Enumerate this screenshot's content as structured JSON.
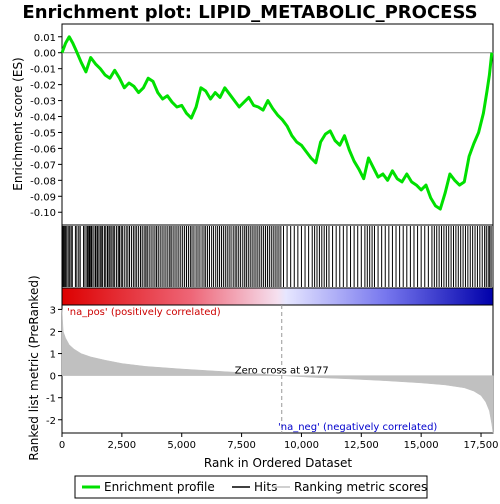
{
  "chart_data": {
    "type": "line",
    "title": "Enrichment plot: LIPID_METABOLIC_PROCESS",
    "top_panel": {
      "ylabel": "Enrichment score (ES)",
      "ylim": [
        -0.108,
        0.018
      ],
      "yticks": [
        0.01,
        0.0,
        -0.01,
        -0.02,
        -0.03,
        -0.04,
        -0.05,
        -0.06,
        -0.07,
        -0.08,
        -0.09,
        -0.1
      ],
      "ytick_labels": [
        "0.01",
        "0.00",
        "-0.01",
        "-0.02",
        "-0.03",
        "-0.04",
        "-0.05",
        "-0.06",
        "-0.07",
        "-0.08",
        "-0.09",
        "-0.10"
      ],
      "series": [
        {
          "name": "Enrichment profile",
          "color": "#00e000",
          "x": [
            0,
            150,
            300,
            450,
            600,
            800,
            1000,
            1200,
            1400,
            1600,
            1800,
            2000,
            2200,
            2400,
            2600,
            2800,
            3000,
            3200,
            3400,
            3600,
            3800,
            4000,
            4200,
            4400,
            4600,
            4800,
            5000,
            5200,
            5400,
            5600,
            5800,
            6000,
            6200,
            6400,
            6600,
            6800,
            7000,
            7200,
            7400,
            7600,
            7800,
            8000,
            8200,
            8400,
            8600,
            8800,
            9000,
            9200,
            9400,
            9600,
            9800,
            10000,
            10200,
            10400,
            10600,
            10800,
            11000,
            11200,
            11400,
            11600,
            11800,
            12000,
            12200,
            12400,
            12600,
            12800,
            13000,
            13200,
            13400,
            13600,
            13800,
            14000,
            14200,
            14400,
            14600,
            14800,
            15000,
            15200,
            15400,
            15600,
            15800,
            16000,
            16200,
            16400,
            16600,
            16800,
            17000,
            17200,
            17400,
            17600,
            17750,
            17850,
            17950
          ],
          "y": [
            0.0,
            0.006,
            0.01,
            0.006,
            0.001,
            -0.006,
            -0.012,
            -0.003,
            -0.007,
            -0.01,
            -0.014,
            -0.016,
            -0.011,
            -0.016,
            -0.022,
            -0.019,
            -0.021,
            -0.025,
            -0.022,
            -0.016,
            -0.018,
            -0.025,
            -0.029,
            -0.027,
            -0.031,
            -0.034,
            -0.033,
            -0.038,
            -0.041,
            -0.034,
            -0.022,
            -0.024,
            -0.029,
            -0.025,
            -0.028,
            -0.022,
            -0.026,
            -0.03,
            -0.034,
            -0.031,
            -0.028,
            -0.033,
            -0.034,
            -0.036,
            -0.03,
            -0.035,
            -0.039,
            -0.042,
            -0.046,
            -0.052,
            -0.056,
            -0.058,
            -0.062,
            -0.066,
            -0.069,
            -0.056,
            -0.051,
            -0.049,
            -0.055,
            -0.058,
            -0.052,
            -0.061,
            -0.068,
            -0.073,
            -0.079,
            -0.066,
            -0.072,
            -0.078,
            -0.076,
            -0.08,
            -0.074,
            -0.079,
            -0.081,
            -0.076,
            -0.081,
            -0.083,
            -0.086,
            -0.083,
            -0.091,
            -0.096,
            -0.098,
            -0.088,
            -0.076,
            -0.08,
            -0.083,
            -0.081,
            -0.065,
            -0.057,
            -0.05,
            -0.038,
            -0.024,
            -0.014,
            0.0
          ]
        }
      ]
    },
    "hits_panel": {
      "hit_ranks": [
        20,
        60,
        100,
        150,
        200,
        260,
        320,
        380,
        430,
        560,
        620,
        700,
        760,
        900,
        960,
        1040,
        1080,
        1130,
        1160,
        1210,
        1240,
        1300,
        1380,
        1420,
        1480,
        1540,
        1600,
        1660,
        1700,
        1780,
        1830,
        1900,
        1960,
        2010,
        2080,
        2140,
        2200,
        2280,
        2350,
        2400,
        2470,
        2520,
        2600,
        2680,
        2750,
        2820,
        2900,
        2980,
        3050,
        3120,
        3200,
        3280,
        3350,
        3430,
        3500,
        3560,
        3640,
        3720,
        3800,
        3880,
        3950,
        4020,
        4100,
        4180,
        4260,
        4340,
        4420,
        4500,
        4560,
        4640,
        4720,
        4800,
        4880,
        4960,
        5040,
        5120,
        5200,
        5280,
        5360,
        5430,
        5510,
        5600,
        5680,
        5760,
        5850,
        5930,
        6000,
        6080,
        6160,
        6250,
        6330,
        6420,
        6500,
        6580,
        6660,
        6740,
        6820,
        6900,
        6980,
        7060,
        7150,
        7230,
        7300,
        7380,
        7460,
        7550,
        7630,
        7700,
        7780,
        7860,
        7940,
        8020,
        8100,
        8180,
        8260,
        8340,
        8420,
        8500,
        8580,
        8660,
        8740,
        8820,
        8900,
        8980,
        9060,
        9140,
        9250,
        9400,
        9550,
        9700,
        9850,
        10000,
        10150,
        10300,
        10450,
        10550,
        10650,
        10750,
        10850,
        10950,
        11050,
        11150,
        11300,
        11450,
        11600,
        11750,
        11900,
        12050,
        12200,
        12350,
        12500,
        12650,
        12750,
        12850,
        12950,
        13050,
        13200,
        13350,
        13500,
        13650,
        13800,
        13950,
        14100,
        14250,
        14400,
        14550,
        14700,
        14850,
        15000,
        15150,
        15300,
        15450,
        15550,
        15650,
        15750,
        15850,
        15950,
        16050,
        16150,
        16250,
        16350,
        16450,
        16550,
        16650,
        16750,
        16850,
        16950,
        17050,
        17150,
        17250,
        17350,
        17450,
        17550,
        17650,
        17720,
        17800,
        17860,
        17920
      ]
    },
    "bottom_panel": {
      "ylabel": "Ranked list metric (PreRanked)",
      "xlabel": "Rank in Ordered Dataset",
      "ylim": [
        -2.6,
        3.2
      ],
      "yticks": [
        3,
        2,
        1,
        0,
        -1,
        -2
      ],
      "ytick_labels": [
        "3",
        "2",
        "1",
        "0",
        "-1",
        "-2"
      ],
      "xlim": [
        0,
        18000
      ],
      "xticks": [
        0,
        2500,
        5000,
        7500,
        10000,
        12500,
        15000,
        17500
      ],
      "xtick_labels": [
        "0",
        "2,500",
        "5,000",
        "7,500",
        "10,000",
        "12,500",
        "15,000",
        "17,500"
      ],
      "metric_x": [
        0,
        50,
        150,
        300,
        500,
        800,
        1200,
        1800,
        2500,
        3500,
        5000,
        6500,
        8000,
        9177,
        10500,
        12000,
        13500,
        15000,
        16000,
        16800,
        17200,
        17500,
        17700,
        17850,
        17950,
        18000
      ],
      "metric_y": [
        3.0,
        2.0,
        1.7,
        1.4,
        1.2,
        1.0,
        0.85,
        0.7,
        0.55,
        0.42,
        0.3,
        0.2,
        0.1,
        0.0,
        -0.08,
        -0.15,
        -0.23,
        -0.33,
        -0.42,
        -0.55,
        -0.7,
        -0.9,
        -1.2,
        -1.6,
        -2.2,
        -2.6
      ],
      "zero_cross_rank": 9177,
      "zero_cross_label": "Zero cross at 9177",
      "pos_label": "'na_pos' (positively correlated)",
      "neg_label": "'na_neg' (negatively correlated)",
      "pos_color": "#cc0000",
      "neg_color": "#0000cc"
    },
    "legend": {
      "placement": "bottom",
      "items": [
        {
          "label": "Enrichment profile",
          "color": "#00e000",
          "kind": "line"
        },
        {
          "label": "Hits",
          "color": "#000000",
          "kind": "line"
        },
        {
          "label": "Ranking metric scores",
          "color": "#c0c0c0",
          "kind": "line"
        }
      ]
    }
  }
}
